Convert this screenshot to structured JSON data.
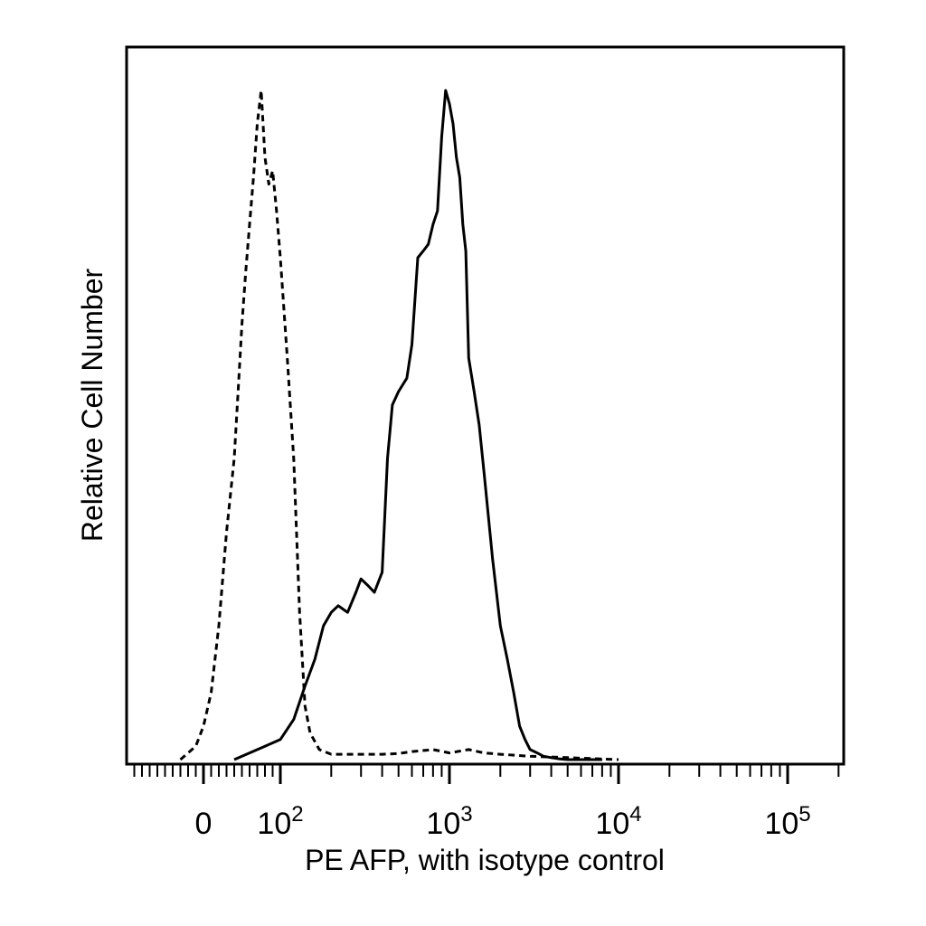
{
  "chart_data": {
    "type": "line",
    "title": "",
    "xlabel": "PE AFP, with isotype control",
    "ylabel": "Relative Cell Number",
    "x_scale": "biexponential (linear near 0, log above 10^2)",
    "xlim": [
      -50,
      250000
    ],
    "ylim": [
      0,
      100
    ],
    "grid": false,
    "legend": "none",
    "x_tick_labels": [
      {
        "value": 0,
        "base": "0",
        "exp": ""
      },
      {
        "value": 100,
        "base": "10",
        "exp": "2"
      },
      {
        "value": 1000,
        "base": "10",
        "exp": "3"
      },
      {
        "value": 10000,
        "base": "10",
        "exp": "4"
      },
      {
        "value": 100000,
        "base": "10",
        "exp": "5"
      }
    ],
    "series": [
      {
        "style": "dashed",
        "x": [
          -30,
          -20,
          -10,
          0,
          10,
          20,
          30,
          40,
          45,
          50,
          55,
          60,
          65,
          70,
          75,
          80,
          85,
          90,
          95,
          100,
          110,
          120,
          130,
          140,
          150,
          170,
          200,
          250,
          300,
          400,
          500,
          600,
          800,
          1000,
          1300,
          1600,
          2000,
          3000,
          5000,
          8000,
          10000
        ],
        "y": [
          0,
          1,
          2,
          5,
          10,
          20,
          34,
          45,
          55,
          65,
          73,
          80,
          87,
          95,
          100,
          90,
          86,
          88,
          82,
          75,
          60,
          45,
          22,
          8,
          4,
          1.5,
          0.8,
          0.8,
          0.8,
          0.8,
          0.9,
          1.2,
          1.5,
          1,
          1.5,
          1,
          0.8,
          0.5,
          0.3,
          0.1,
          0
        ]
      },
      {
        "style": "solid",
        "x": [
          40,
          60,
          80,
          100,
          120,
          140,
          160,
          180,
          200,
          220,
          250,
          280,
          300,
          330,
          360,
          400,
          430,
          460,
          500,
          560,
          600,
          650,
          700,
          750,
          800,
          850,
          900,
          950,
          1000,
          1050,
          1100,
          1150,
          1200,
          1250,
          1300,
          1400,
          1500,
          1600,
          1800,
          2000,
          2200,
          2400,
          2600,
          2800,
          3000,
          3300,
          3600,
          4000,
          4500,
          5000,
          6000,
          7000,
          8000
        ],
        "y": [
          0,
          1,
          2,
          3,
          6,
          11,
          15,
          20,
          22,
          23,
          22,
          25,
          27,
          26,
          25,
          28,
          45,
          53,
          55,
          57,
          62,
          75,
          76,
          77,
          80,
          82,
          93,
          100,
          98,
          95,
          90,
          87,
          80,
          76,
          60,
          55,
          50,
          43,
          30,
          20,
          15,
          10,
          5,
          3,
          1.5,
          1,
          0.5,
          0.3,
          0.1,
          0,
          0,
          0,
          0
        ]
      }
    ]
  }
}
